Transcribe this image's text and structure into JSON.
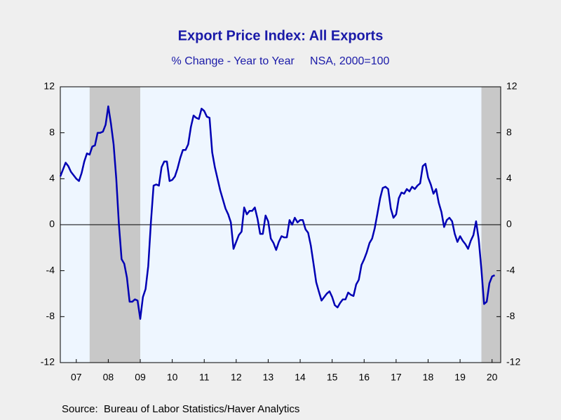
{
  "chart_data": {
    "type": "line",
    "title": "Export Price Index: All Exports",
    "subtitle": "% Change - Year to Year     NSA, 2000=100",
    "source": "Source:  Bureau of Labor Statistics/Haver Analytics",
    "xlim": [
      2007,
      2020.77
    ],
    "xticks": [
      {
        "value": 2007.5,
        "label": "07"
      },
      {
        "value": 2008.5,
        "label": "08"
      },
      {
        "value": 2009.5,
        "label": "09"
      },
      {
        "value": 2010.5,
        "label": "10"
      },
      {
        "value": 2011.5,
        "label": "11"
      },
      {
        "value": 2012.5,
        "label": "12"
      },
      {
        "value": 2013.5,
        "label": "13"
      },
      {
        "value": 2014.5,
        "label": "14"
      },
      {
        "value": 2015.5,
        "label": "15"
      },
      {
        "value": 2016.5,
        "label": "16"
      },
      {
        "value": 2017.5,
        "label": "17"
      },
      {
        "value": 2018.5,
        "label": "18"
      },
      {
        "value": 2019.5,
        "label": "19"
      },
      {
        "value": 2020.5,
        "label": "20"
      }
    ],
    "ylim": [
      -12,
      12
    ],
    "yticks": [
      -12,
      -8,
      -4,
      0,
      4,
      8,
      12
    ],
    "shaded": [
      [
        2007.917,
        2009.5
      ],
      [
        2020.167,
        2020.77
      ]
    ],
    "x": [
      2007,
      2007.083,
      2007.167,
      2007.25,
      2007.333,
      2007.417,
      2007.5,
      2007.583,
      2007.667,
      2007.75,
      2007.833,
      2007.917,
      2008,
      2008.083,
      2008.167,
      2008.25,
      2008.333,
      2008.417,
      2008.5,
      2008.583,
      2008.667,
      2008.75,
      2008.833,
      2008.917,
      2009,
      2009.083,
      2009.167,
      2009.25,
      2009.333,
      2009.417,
      2009.5,
      2009.583,
      2009.667,
      2009.75,
      2009.833,
      2009.917,
      2010,
      2010.083,
      2010.167,
      2010.25,
      2010.333,
      2010.417,
      2010.5,
      2010.583,
      2010.667,
      2010.75,
      2010.833,
      2010.917,
      2011,
      2011.083,
      2011.167,
      2011.25,
      2011.333,
      2011.417,
      2011.5,
      2011.583,
      2011.667,
      2011.75,
      2011.833,
      2011.917,
      2012,
      2012.083,
      2012.167,
      2012.25,
      2012.333,
      2012.417,
      2012.5,
      2012.583,
      2012.667,
      2012.75,
      2012.833,
      2012.917,
      2013,
      2013.083,
      2013.167,
      2013.25,
      2013.333,
      2013.417,
      2013.5,
      2013.583,
      2013.667,
      2013.75,
      2013.833,
      2013.917,
      2014,
      2014.083,
      2014.167,
      2014.25,
      2014.333,
      2014.417,
      2014.5,
      2014.583,
      2014.667,
      2014.75,
      2014.833,
      2014.917,
      2015,
      2015.083,
      2015.167,
      2015.25,
      2015.333,
      2015.417,
      2015.5,
      2015.583,
      2015.667,
      2015.75,
      2015.833,
      2015.917,
      2016,
      2016.083,
      2016.167,
      2016.25,
      2016.333,
      2016.417,
      2016.5,
      2016.583,
      2016.667,
      2016.75,
      2016.833,
      2016.917,
      2017,
      2017.083,
      2017.167,
      2017.25,
      2017.333,
      2017.417,
      2017.5,
      2017.583,
      2017.667,
      2017.75,
      2017.833,
      2017.917,
      2018,
      2018.083,
      2018.167,
      2018.25,
      2018.333,
      2018.417,
      2018.5,
      2018.583,
      2018.667,
      2018.75,
      2018.833,
      2018.917,
      2019,
      2019.083,
      2019.167,
      2019.25,
      2019.333,
      2019.417,
      2019.5,
      2019.583,
      2019.667,
      2019.75,
      2019.833,
      2019.917,
      2020,
      2020.083,
      2020.167,
      2020.25,
      2020.333,
      2020.417,
      2020.5,
      2020.583
    ],
    "series": [
      {
        "name": "Export Price Index",
        "color": "#0000b4",
        "values": [
          4.2,
          4.8,
          5.4,
          5.1,
          4.6,
          4.3,
          4.0,
          3.8,
          4.5,
          5.5,
          6.2,
          6.1,
          6.8,
          6.9,
          8.0,
          8.0,
          8.1,
          8.7,
          10.3,
          8.8,
          7.0,
          4.0,
          0.0,
          -3.0,
          -3.4,
          -4.6,
          -6.7,
          -6.7,
          -6.5,
          -6.6,
          -8.2,
          -6.3,
          -5.6,
          -3.6,
          0.2,
          3.4,
          3.5,
          3.4,
          5.0,
          5.5,
          5.5,
          3.8,
          3.9,
          4.2,
          4.9,
          5.8,
          6.5,
          6.5,
          7.0,
          8.5,
          9.5,
          9.3,
          9.2,
          10.1,
          9.9,
          9.4,
          9.3,
          6.3,
          5.0,
          4.0,
          3.0,
          2.2,
          1.4,
          0.9,
          0.2,
          -2.1,
          -1.5,
          -0.9,
          -0.6,
          1.5,
          0.9,
          1.2,
          1.2,
          1.5,
          0.5,
          -0.8,
          -0.8,
          0.8,
          0.3,
          -1.2,
          -1.6,
          -2.2,
          -1.5,
          -1.0,
          -1.1,
          -1.1,
          0.4,
          0.0,
          0.6,
          0.2,
          0.4,
          0.4,
          -0.4,
          -0.7,
          -1.8,
          -3.4,
          -5.0,
          -5.8,
          -6.6,
          -6.3,
          -6.0,
          -5.8,
          -6.3,
          -7.0,
          -7.2,
          -6.8,
          -6.5,
          -6.5,
          -5.9,
          -6.1,
          -6.2,
          -5.2,
          -4.8,
          -3.5,
          -3.0,
          -2.4,
          -1.6,
          -1.2,
          -0.3,
          1.0,
          2.3,
          3.2,
          3.3,
          3.1,
          1.4,
          0.6,
          0.9,
          2.3,
          2.8,
          2.7,
          3.1,
          2.9,
          3.3,
          3.1,
          3.4,
          3.6,
          5.1,
          5.3,
          4.1,
          3.5,
          2.7,
          3.1,
          1.9,
          1.1,
          -0.2,
          0.4,
          0.6,
          0.3,
          -0.8,
          -1.5,
          -1.0,
          -1.4,
          -1.7,
          -2.1,
          -1.4,
          -0.9,
          0.3,
          -1.3,
          -3.9,
          -6.9,
          -6.7,
          -5.1,
          -4.5,
          -4.4
        ]
      }
    ]
  }
}
